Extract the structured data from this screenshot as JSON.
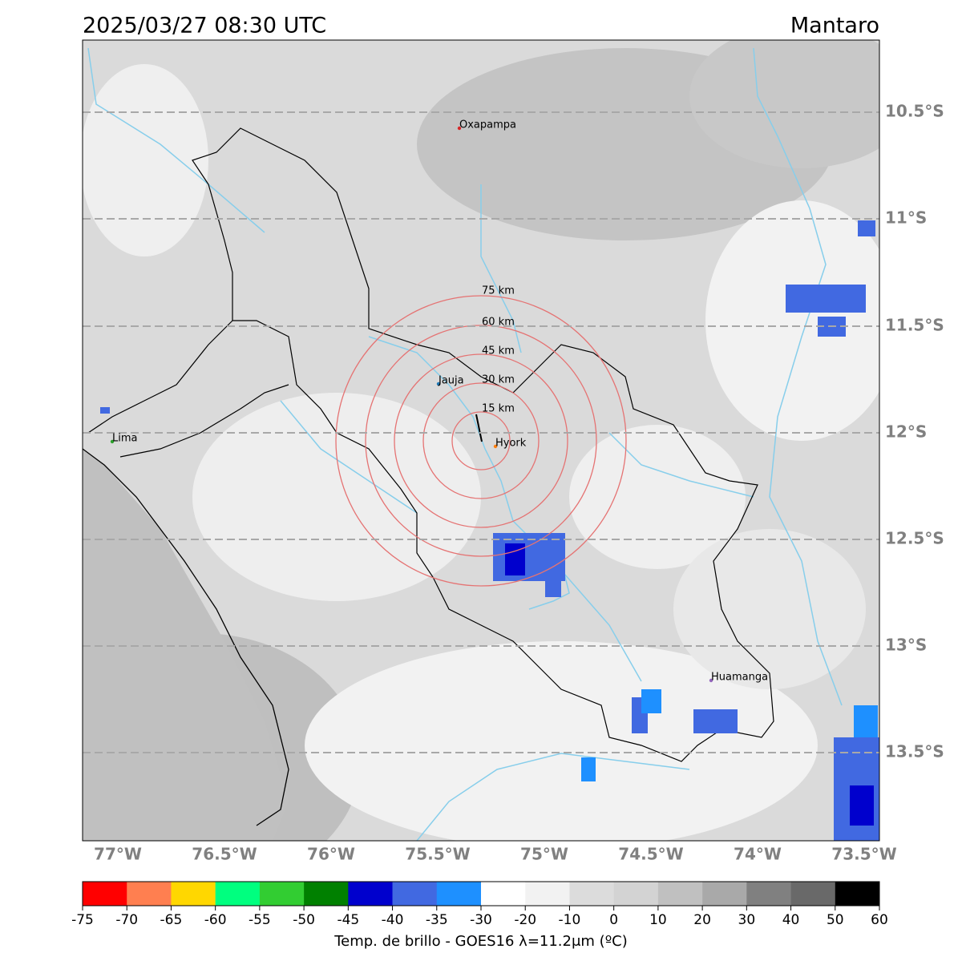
{
  "header": {
    "datetime": "2025/03/27 08:30 UTC",
    "region": "Mantaro"
  },
  "map": {
    "lat_labels": [
      "10.5°S",
      "11°S",
      "11.5°S",
      "12°S",
      "12.5°S",
      "13°S",
      "13.5°S"
    ],
    "lon_labels": [
      "77°W",
      "76.5°W",
      "76°W",
      "75.5°W",
      "75°W",
      "74.5°W",
      "74°W",
      "73.5°W"
    ],
    "places": [
      "Oxapampa",
      "Jauja",
      "Hyork",
      "Lima",
      "Huamanga"
    ],
    "rings": [
      "15 km",
      "30 km",
      "45 km",
      "60 km",
      "75 km"
    ]
  },
  "colorbar": {
    "label": "Temp. de brillo - GOES16 λ=11.2μm (ºC)",
    "ticks": [
      -75,
      -70,
      -65,
      -60,
      -55,
      -50,
      -45,
      -40,
      -35,
      -30,
      -20,
      -10,
      0,
      10,
      20,
      30,
      40,
      50,
      60
    ],
    "colors": [
      "#ff0000",
      "#ff7f50",
      "#ffd700",
      "#00ff7f",
      "#32cd32",
      "#008000",
      "#0000cd",
      "#4169e1",
      "#1e90ff",
      "#ffffff",
      "#f2f2f2",
      "#dcdcdc",
      "#d3d3d3",
      "#c0c0c0",
      "#a9a9a9",
      "#808080",
      "#696969",
      "#000000"
    ]
  }
}
